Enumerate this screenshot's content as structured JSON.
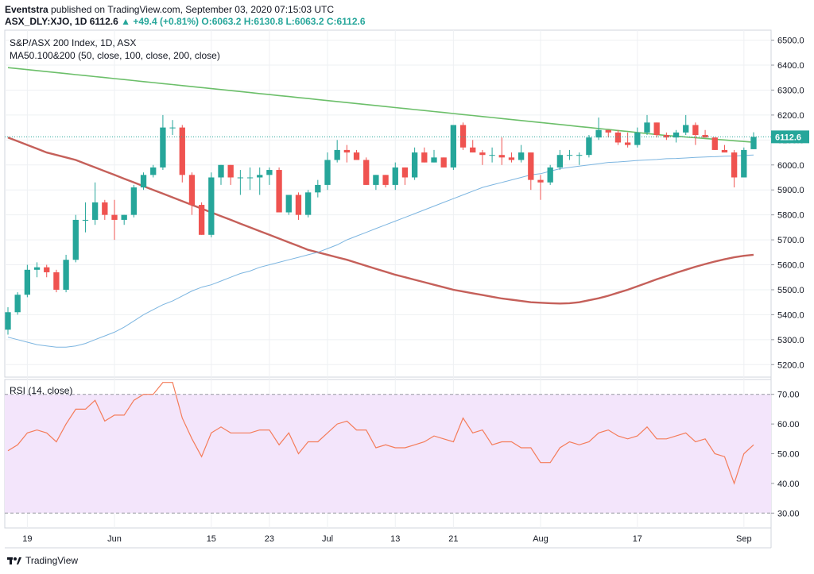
{
  "header": {
    "author": "Eventstra",
    "published_text": "published on TradingView.com, September 03, 2020 07:15:03 UTC"
  },
  "ticker": {
    "symbol": "ASX_DLY:XJO, 1D",
    "last": "6112.6",
    "change": "▲ +49.4 (+0.81%)",
    "ohlc": "O:6063.2 H:6130.8 L:6063.2 C:6112.6"
  },
  "legend": {
    "title": "S&P/ASX 200 Index, 1D, ASX",
    "indicator": "MA50.100&200 (50, close, 100, close, 200, close)"
  },
  "rsi": {
    "label": "RSI (14, close)"
  },
  "footer": {
    "brand": "TradingView"
  },
  "colors": {
    "up": "#26a69a",
    "down": "#ef5350",
    "ma50": "#7cb5e0",
    "ma100": "#c5605a",
    "ma200": "#6cbf6a",
    "rsi_line": "#f47c5a",
    "rsi_band": "#f3e5fb",
    "axis_text": "#131722",
    "grid": "#eef0f3"
  },
  "chart_data": [
    {
      "type": "candlestick",
      "title": "S&P/ASX 200 Index, 1D, ASX",
      "ylim": [
        5150,
        6540
      ],
      "y_ticks": [
        5200,
        5300,
        5400,
        5500,
        5600,
        5700,
        5800,
        5900,
        6000,
        6100,
        6200,
        6300,
        6400,
        6500
      ],
      "last_price_label": "6112.6",
      "x_tick_labels": [
        {
          "label": "19",
          "index": 2
        },
        {
          "label": "Jun",
          "index": 11
        },
        {
          "label": "15",
          "index": 21
        },
        {
          "label": "23",
          "index": 27
        },
        {
          "label": "Jul",
          "index": 33
        },
        {
          "label": "13",
          "index": 40
        },
        {
          "label": "21",
          "index": 46
        },
        {
          "label": "Aug",
          "index": 55
        },
        {
          "label": "17",
          "index": 65
        },
        {
          "label": "Sep",
          "index": 76
        }
      ],
      "ohlc": [
        [
          5340,
          5430,
          5320,
          5410
        ],
        [
          5410,
          5490,
          5400,
          5480
        ],
        [
          5480,
          5600,
          5470,
          5580
        ],
        [
          5580,
          5610,
          5550,
          5590
        ],
        [
          5590,
          5600,
          5550,
          5570
        ],
        [
          5570,
          5580,
          5490,
          5500
        ],
        [
          5500,
          5640,
          5490,
          5620
        ],
        [
          5620,
          5800,
          5610,
          5780
        ],
        [
          5780,
          5850,
          5730,
          5780
        ],
        [
          5780,
          5930,
          5760,
          5850
        ],
        [
          5850,
          5860,
          5780,
          5800
        ],
        [
          5800,
          5860,
          5700,
          5780
        ],
        [
          5780,
          5800,
          5760,
          5800
        ],
        [
          5800,
          5920,
          5790,
          5910
        ],
        [
          5910,
          5970,
          5900,
          5960
        ],
        [
          5960,
          6000,
          5950,
          5990
        ],
        [
          5990,
          6200,
          5980,
          6150
        ],
        [
          6150,
          6180,
          6120,
          6150
        ],
        [
          6150,
          6160,
          5930,
          5960
        ],
        [
          5960,
          5970,
          5800,
          5840
        ],
        [
          5840,
          5850,
          5720,
          5720
        ],
        [
          5720,
          5970,
          5710,
          5950
        ],
        [
          5950,
          6000,
          5920,
          6000
        ],
        [
          6000,
          6000,
          5920,
          5950
        ],
        [
          5950,
          5980,
          5880,
          5950
        ],
        [
          5950,
          5990,
          5900,
          5950
        ],
        [
          5950,
          5990,
          5880,
          5960
        ],
        [
          5960,
          5990,
          5920,
          5980
        ],
        [
          5980,
          5990,
          5810,
          5810
        ],
        [
          5810,
          5880,
          5800,
          5880
        ],
        [
          5880,
          5890,
          5780,
          5800
        ],
        [
          5800,
          5900,
          5790,
          5890
        ],
        [
          5890,
          5940,
          5870,
          5920
        ],
        [
          5920,
          6050,
          5900,
          6020
        ],
        [
          6020,
          6100,
          6010,
          6060
        ],
        [
          6060,
          6080,
          6010,
          6050
        ],
        [
          6050,
          6060,
          6020,
          6020
        ],
        [
          6020,
          6030,
          5920,
          5920
        ],
        [
          5920,
          5960,
          5900,
          5960
        ],
        [
          5960,
          5960,
          5910,
          5920
        ],
        [
          5920,
          6010,
          5900,
          5990
        ],
        [
          5990,
          5990,
          5920,
          5950
        ],
        [
          5950,
          6070,
          5940,
          6050
        ],
        [
          6050,
          6070,
          6010,
          6010
        ],
        [
          6010,
          6060,
          6010,
          6030
        ],
        [
          6030,
          6030,
          5990,
          5990
        ],
        [
          5990,
          6160,
          5980,
          6160
        ],
        [
          6160,
          6170,
          6060,
          6070
        ],
        [
          6070,
          6100,
          6050,
          6050
        ],
        [
          6050,
          6060,
          6000,
          6040
        ],
        [
          6040,
          6070,
          6010,
          6040
        ],
        [
          6040,
          6110,
          6000,
          6030
        ],
        [
          6030,
          6050,
          6010,
          6020
        ],
        [
          6020,
          6080,
          6010,
          6050
        ],
        [
          6050,
          6050,
          5900,
          5940
        ],
        [
          5940,
          5960,
          5860,
          5930
        ],
        [
          5930,
          6000,
          5920,
          5990
        ],
        [
          5990,
          6060,
          5980,
          6040
        ],
        [
          6040,
          6060,
          6020,
          6040
        ],
        [
          6040,
          6050,
          6000,
          6040
        ],
        [
          6040,
          6120,
          6030,
          6110
        ],
        [
          6110,
          6190,
          6100,
          6140
        ],
        [
          6140,
          6140,
          6110,
          6130
        ],
        [
          6130,
          6140,
          6080,
          6090
        ],
        [
          6090,
          6130,
          6070,
          6080
        ],
        [
          6080,
          6150,
          6070,
          6130
        ],
        [
          6130,
          6200,
          6120,
          6170
        ],
        [
          6170,
          6170,
          6110,
          6120
        ],
        [
          6120,
          6130,
          6100,
          6110
        ],
        [
          6110,
          6140,
          6090,
          6130
        ],
        [
          6130,
          6200,
          6120,
          6160
        ],
        [
          6160,
          6170,
          6080,
          6120
        ],
        [
          6120,
          6140,
          6110,
          6110
        ],
        [
          6110,
          6110,
          6060,
          6060
        ],
        [
          6060,
          6080,
          6050,
          6050
        ],
        [
          6050,
          6060,
          5910,
          5950
        ],
        [
          5950,
          6070,
          5950,
          6060
        ],
        [
          6063.2,
          6130.8,
          6063.2,
          6112.6
        ]
      ],
      "ma50": [
        5310,
        5300,
        5290,
        5280,
        5275,
        5270,
        5270,
        5275,
        5285,
        5300,
        5315,
        5330,
        5350,
        5375,
        5400,
        5420,
        5440,
        5455,
        5475,
        5495,
        5510,
        5520,
        5535,
        5550,
        5565,
        5575,
        5590,
        5600,
        5610,
        5620,
        5630,
        5640,
        5650,
        5665,
        5680,
        5700,
        5715,
        5730,
        5745,
        5760,
        5775,
        5790,
        5805,
        5820,
        5835,
        5850,
        5865,
        5880,
        5895,
        5910,
        5920,
        5930,
        5940,
        5950,
        5960,
        5965,
        5975,
        5985,
        5990,
        5995,
        6000,
        6005,
        6010,
        6012,
        6015,
        6018,
        6020,
        6022,
        6025,
        6026,
        6028,
        6030,
        6032,
        6033,
        6035,
        6036,
        6038,
        6040
      ],
      "ma100": [
        6110,
        6095,
        6080,
        6065,
        6050,
        6040,
        6030,
        6020,
        6005,
        5990,
        5975,
        5960,
        5945,
        5930,
        5915,
        5900,
        5885,
        5870,
        5855,
        5840,
        5825,
        5810,
        5795,
        5780,
        5765,
        5750,
        5735,
        5720,
        5705,
        5690,
        5675,
        5660,
        5650,
        5640,
        5630,
        5620,
        5608,
        5596,
        5584,
        5572,
        5560,
        5550,
        5540,
        5530,
        5520,
        5510,
        5500,
        5493,
        5486,
        5479,
        5472,
        5465,
        5460,
        5455,
        5450,
        5448,
        5446,
        5445,
        5446,
        5450,
        5458,
        5466,
        5476,
        5488,
        5500,
        5514,
        5528,
        5542,
        5555,
        5568,
        5580,
        5592,
        5603,
        5613,
        5622,
        5630,
        5636,
        5640
      ],
      "ma200": [
        6390,
        6386,
        6382,
        6378,
        6374,
        6370,
        6366,
        6362,
        6358,
        6354,
        6350,
        6346,
        6342,
        6338,
        6334,
        6330,
        6326,
        6322,
        6318,
        6314,
        6310,
        6306,
        6302,
        6298,
        6294,
        6290,
        6286,
        6282,
        6278,
        6274,
        6270,
        6266,
        6262,
        6258,
        6254,
        6250,
        6246,
        6242,
        6238,
        6234,
        6230,
        6226,
        6222,
        6218,
        6214,
        6210,
        6206,
        6202,
        6198,
        6194,
        6190,
        6186,
        6182,
        6178,
        6174,
        6170,
        6166,
        6162,
        6158,
        6154,
        6150,
        6146,
        6142,
        6138,
        6134,
        6130,
        6126,
        6122,
        6118,
        6115,
        6112,
        6109,
        6106,
        6103,
        6100,
        6097,
        6094,
        6091
      ]
    },
    {
      "type": "line",
      "title": "RSI (14, close)",
      "ylim": [
        25,
        75
      ],
      "y_ticks": [
        30,
        40,
        50,
        60,
        70
      ],
      "band": [
        30,
        70
      ],
      "values": [
        51,
        53,
        57,
        58,
        57,
        54,
        60,
        65,
        65,
        68,
        61,
        63,
        63,
        68,
        70,
        70,
        74,
        74,
        62,
        55,
        49,
        57,
        59,
        57,
        57,
        57,
        58,
        58,
        53,
        57,
        50,
        54,
        54,
        57,
        60,
        61,
        58,
        58,
        52,
        53,
        52,
        52,
        53,
        54,
        56,
        55,
        54,
        62,
        57,
        58,
        53,
        54,
        54,
        52,
        52,
        47,
        47,
        52,
        54,
        53,
        54,
        57,
        58,
        56,
        55,
        56,
        59,
        55,
        55,
        56,
        57,
        54,
        55,
        50,
        49,
        40,
        50,
        53
      ]
    }
  ]
}
